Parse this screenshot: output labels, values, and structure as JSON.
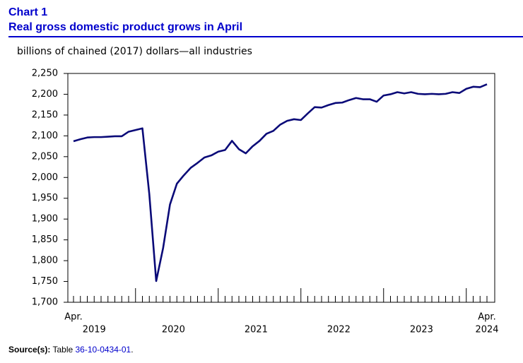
{
  "chart_data": {
    "type": "line",
    "title": "Chart 1",
    "subtitle": "Real gross domestic product grows in April",
    "y_label": "billions of chained (2017) dollars—all industries",
    "categories": [
      "Apr.",
      null,
      null,
      null,
      null,
      null,
      null,
      null,
      null,
      null,
      null,
      null,
      null,
      null,
      null,
      null,
      null,
      null,
      null,
      null,
      null,
      null,
      null,
      null,
      null,
      null,
      null,
      null,
      null,
      null,
      null,
      null,
      null,
      null,
      null,
      null,
      null,
      null,
      null,
      null,
      null,
      null,
      null,
      null,
      null,
      null,
      null,
      null,
      null,
      null,
      null,
      null,
      null,
      null,
      null,
      null,
      null,
      null,
      null,
      null,
      "Apr."
    ],
    "year_labels": [
      "2019",
      "2020",
      "2021",
      "2022",
      "2023",
      "2024"
    ],
    "series": [
      {
        "name": "Real GDP",
        "color": "#0a0a78",
        "values": [
          2087,
          2092,
          2096,
          2097,
          2097,
          2098,
          2099,
          2099,
          2110,
          2114,
          2118,
          1960,
          1751,
          1830,
          1935,
          1985,
          2005,
          2023,
          2035,
          2048,
          2053,
          2062,
          2066,
          2088,
          2068,
          2058,
          2075,
          2088,
          2105,
          2112,
          2127,
          2136,
          2140,
          2138,
          2154,
          2169,
          2168,
          2174,
          2179,
          2180,
          2186,
          2191,
          2188,
          2188,
          2182,
          2197,
          2200,
          2205,
          2202,
          2205,
          2201,
          2200,
          2201,
          2200,
          2201,
          2205,
          2203,
          2213,
          2218,
          2217,
          2224
        ]
      }
    ],
    "ylim": [
      1700,
      2250
    ],
    "yticks": [
      {
        "value": 1700,
        "label": "1,700"
      },
      {
        "value": 1750,
        "label": "1,750"
      },
      {
        "value": 1800,
        "label": "1,800"
      },
      {
        "value": 1850,
        "label": "1,850"
      },
      {
        "value": 1900,
        "label": "1,900"
      },
      {
        "value": 1950,
        "label": "1,950"
      },
      {
        "value": 2000,
        "label": "2,000"
      },
      {
        "value": 2050,
        "label": "2,050"
      },
      {
        "value": 2100,
        "label": "2,100"
      },
      {
        "value": 2150,
        "label": "2,150"
      },
      {
        "value": 2200,
        "label": "2,200"
      },
      {
        "value": 2250,
        "label": "2,250"
      }
    ],
    "source": {
      "label": "Source(s):",
      "text": "Table",
      "link": "36-10-0434-01",
      "end": "."
    }
  }
}
